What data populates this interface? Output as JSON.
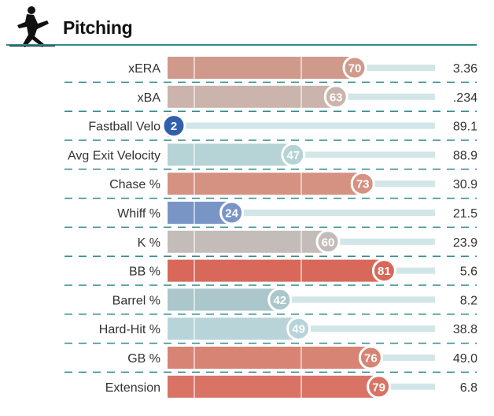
{
  "header": {
    "title": "Pitching",
    "icon": "baseball-pitcher-icon"
  },
  "chart_data": {
    "type": "bar",
    "orientation": "horizontal",
    "metric": "percentile",
    "xlim": [
      0,
      100
    ],
    "rows": [
      {
        "label": "xERA",
        "percentile": 70,
        "value": "3.36",
        "color": "#cf9a8c"
      },
      {
        "label": "xBA",
        "percentile": 63,
        "value": ".234",
        "color": "#cbb4ac"
      },
      {
        "label": "Fastball Velo",
        "percentile": 2,
        "value": "89.1",
        "color": "#3060ad"
      },
      {
        "label": "Avg Exit Velocity",
        "percentile": 47,
        "value": "88.9",
        "color": "#b6d3d6"
      },
      {
        "label": "Chase %",
        "percentile": 73,
        "value": "30.9",
        "color": "#d59181"
      },
      {
        "label": "Whiff %",
        "percentile": 24,
        "value": "21.5",
        "color": "#7995c5"
      },
      {
        "label": "K %",
        "percentile": 60,
        "value": "23.9",
        "color": "#c4bcb8"
      },
      {
        "label": "BB %",
        "percentile": 81,
        "value": "5.6",
        "color": "#d8685a"
      },
      {
        "label": "Barrel %",
        "percentile": 42,
        "value": "8.2",
        "color": "#abc7cc"
      },
      {
        "label": "Hard-Hit %",
        "percentile": 49,
        "value": "38.8",
        "color": "#b8d4d8"
      },
      {
        "label": "GB %",
        "percentile": 76,
        "value": "49.0",
        "color": "#d88475"
      },
      {
        "label": "Extension",
        "percentile": 79,
        "value": "6.8",
        "color": "#d97365"
      }
    ],
    "colors": {
      "track": "#d2e6e8",
      "divider": "#2f8a8c",
      "gridline": "#ffffff"
    }
  }
}
